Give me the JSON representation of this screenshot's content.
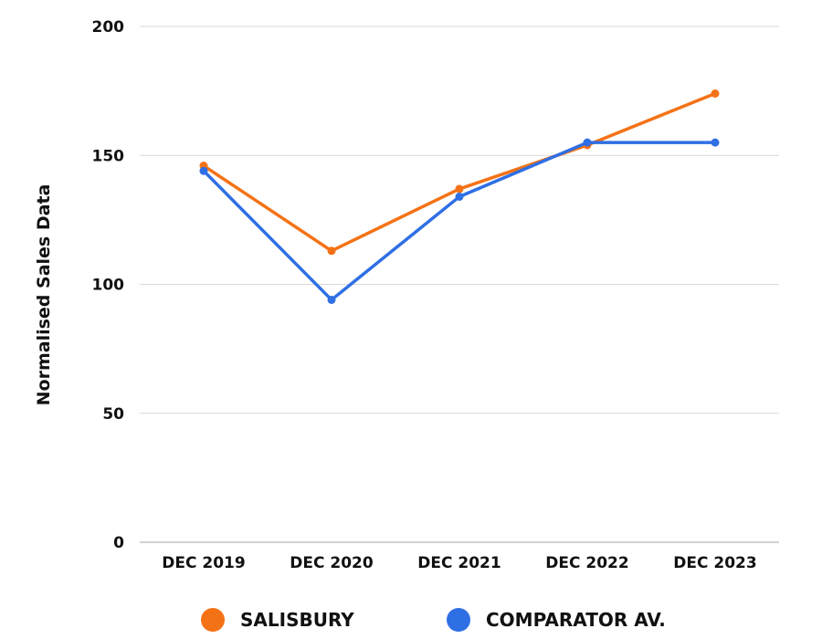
{
  "chart_data": {
    "type": "line",
    "categories": [
      "DEC 2019",
      "DEC 2020",
      "DEC 2021",
      "DEC 2022",
      "DEC 2023"
    ],
    "series": [
      {
        "name": "SALISBURY",
        "color": "#f47216",
        "values": [
          146,
          113,
          137,
          154,
          174
        ]
      },
      {
        "name": "COMPARATOR AV.",
        "color": "#2f6fe4",
        "values": [
          144,
          94,
          134,
          155,
          155
        ]
      }
    ],
    "title": "",
    "xlabel": "",
    "ylabel": "Normalised Sales  Data",
    "ylim": [
      0,
      200
    ],
    "yticks": [
      0,
      50,
      100,
      150,
      200
    ],
    "grid": true,
    "legend_position": "bottom"
  }
}
